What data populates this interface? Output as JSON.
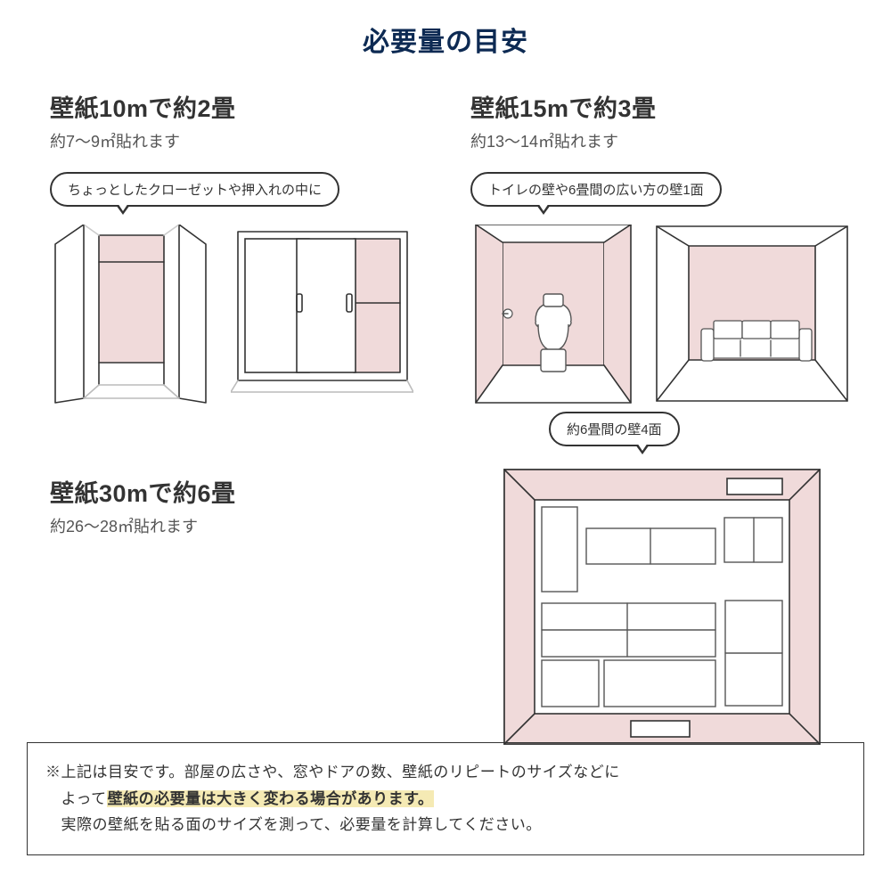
{
  "colors": {
    "bg": "#ffffff",
    "title": "#0d2a53",
    "text": "#333333",
    "sub": "#555555",
    "line": "#333333",
    "accent_fill": "#f0dada",
    "accent_stroke": "#888888",
    "highlight_bg": "#f5eab4",
    "border": "#333333"
  },
  "title": "必要量の目安",
  "sections": {
    "tl": {
      "heading": "壁紙10mで約2畳",
      "sub": "約7～9㎡貼れます",
      "callout": "ちょっとしたクローゼットや押入れの中に"
    },
    "tr": {
      "heading": "壁紙15mで約3畳",
      "sub": "約13～14㎡貼れます",
      "callout": "トイレの壁や6畳間の広い方の壁1面"
    },
    "bl": {
      "heading": "壁紙30mで約6畳",
      "sub": "約26～28㎡貼れます"
    },
    "br": {
      "callout": "約6畳間の壁4面"
    }
  },
  "note": {
    "line1_pre": "※上記は目安です。部屋の広さや、窓やドアの数、壁紙のリピートのサイズなどに",
    "line2_pre": "　よって",
    "line2_highlight": "壁紙の必要量は大きく変わる場合があります。",
    "line3": "　実際の壁紙を貼る面のサイズを測って、必要量を計算してください。"
  },
  "style": {
    "stroke_width": 1.6,
    "callout_tail_left_tl": 72,
    "callout_tail_left_tr": 72,
    "callout_tail_left_br": 95
  }
}
